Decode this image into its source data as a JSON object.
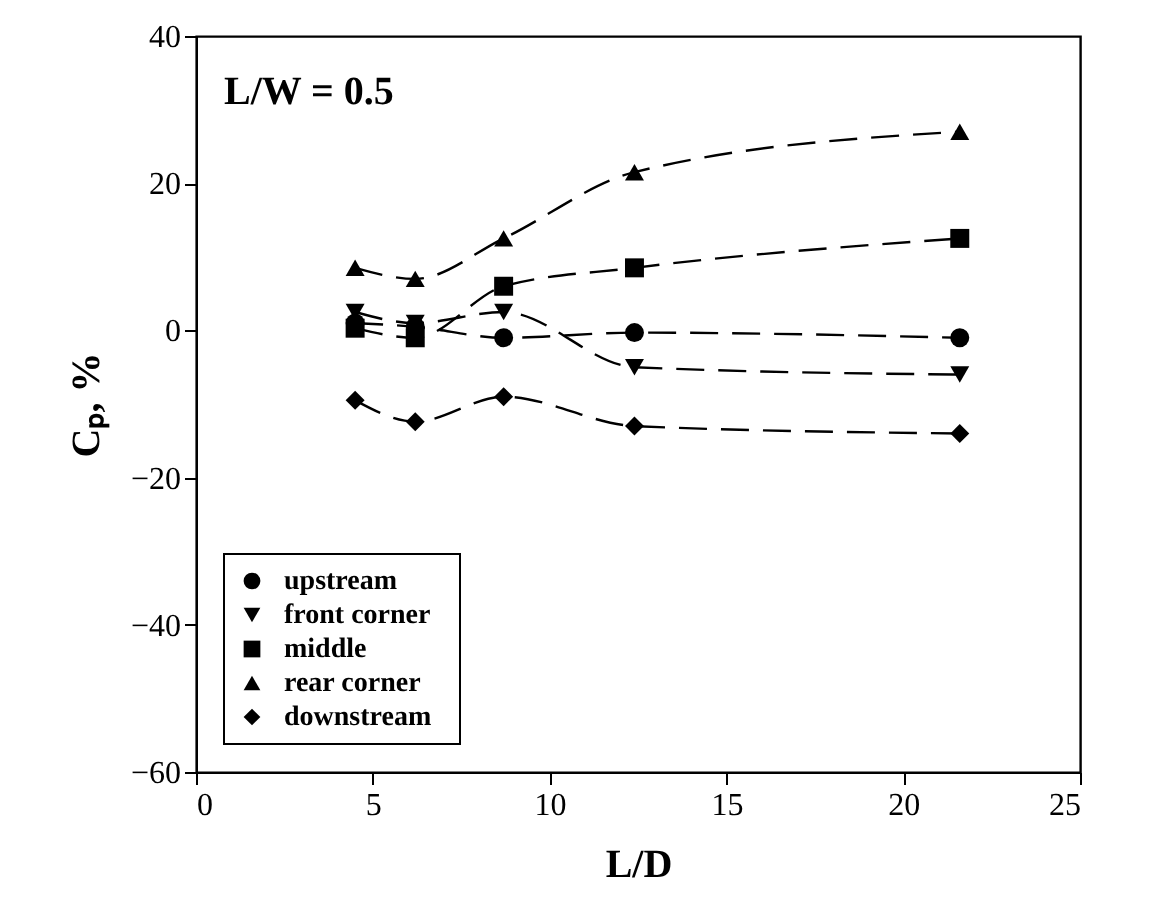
{
  "chart_data": {
    "type": "line",
    "xlabel": "L/D",
    "ylabel": "Cₚ, %",
    "annotations": [
      "L/W = 0.5"
    ],
    "x": [
      4.5,
      6.2,
      8.7,
      12.4,
      21.6
    ],
    "series": [
      {
        "name": "upstream",
        "color": "#000000",
        "marker": "circle",
        "values": [
          1,
          0.5,
          -1,
          -0.3,
          -1
        ]
      },
      {
        "name": "front corner",
        "color": "#000000",
        "marker": "triangle-down",
        "values": [
          2.5,
          1,
          2.5,
          -5,
          -6
        ]
      },
      {
        "name": "middle",
        "color": "#000000",
        "marker": "square",
        "values": [
          0.3,
          -1,
          6,
          8.5,
          12.5
        ]
      },
      {
        "name": "rear corner",
        "color": "#000000",
        "marker": "triangle",
        "values": [
          8.5,
          7,
          12.5,
          21.5,
          27
        ]
      },
      {
        "name": "downstream",
        "color": "#000000",
        "marker": "diamond",
        "values": [
          -9.5,
          -12.4,
          -9,
          -13,
          -14
        ]
      }
    ],
    "xlim": [
      0,
      25
    ],
    "xticks": [
      0,
      5,
      10,
      15,
      20,
      25
    ],
    "ylim": [
      -60,
      40
    ],
    "yticks": [
      -60,
      -40,
      -20,
      0,
      20,
      40
    ],
    "grid": false,
    "legend": "bottom left",
    "line_style": "dashed"
  }
}
